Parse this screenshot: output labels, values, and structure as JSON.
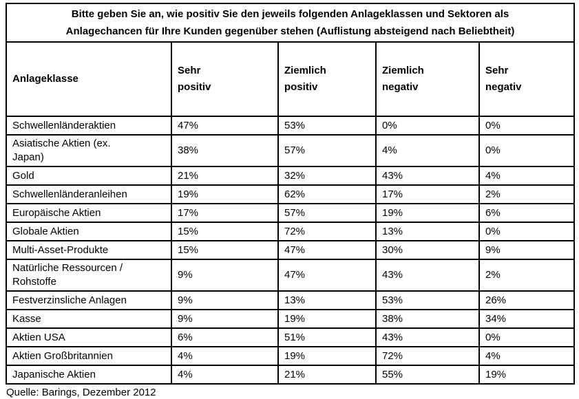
{
  "title": {
    "lines": [
      "Bitte geben Sie an, wie positiv Sie den jeweils folgenden Anlageklassen und Sektoren als",
      "Anlagechancen für Ihre Kunden gegenüber stehen (Auflistung absteigend nach Beliebtheit)"
    ]
  },
  "table": {
    "header": {
      "anlageklasse": "Anlageklasse",
      "columns": [
        {
          "lines": [
            "Sehr",
            "positiv"
          ]
        },
        {
          "lines": [
            "Ziemlich",
            "positiv"
          ]
        },
        {
          "lines": [
            "Ziemlich",
            "negativ"
          ]
        },
        {
          "lines": [
            "Sehr",
            "negativ"
          ]
        }
      ]
    },
    "rows": [
      {
        "name_lines": [
          "Schwellenländeraktien"
        ],
        "values": [
          "47%",
          "53%",
          "0%",
          "0%"
        ]
      },
      {
        "name_lines": [
          "Asiatische Aktien (ex.",
          "Japan)"
        ],
        "values": [
          "38%",
          "57%",
          "4%",
          "0%"
        ]
      },
      {
        "name_lines": [
          "Gold"
        ],
        "values": [
          "21%",
          "32%",
          "43%",
          "4%"
        ]
      },
      {
        "name_lines": [
          "Schwellenländeranleihen"
        ],
        "values": [
          "19%",
          "62%",
          "17%",
          "2%"
        ]
      },
      {
        "name_lines": [
          "Europäische Aktien"
        ],
        "values": [
          "17%",
          "57%",
          "19%",
          "6%"
        ]
      },
      {
        "name_lines": [
          "Globale Aktien"
        ],
        "values": [
          "15%",
          "72%",
          "13%",
          "0%"
        ]
      },
      {
        "name_lines": [
          "Multi-Asset-Produkte"
        ],
        "values": [
          "15%",
          "47%",
          "30%",
          "9%"
        ]
      },
      {
        "name_lines": [
          "Natürliche Ressourcen /",
          "Rohstoffe"
        ],
        "values": [
          "9%",
          "47%",
          "43%",
          "2%"
        ]
      },
      {
        "name_lines": [
          "Festverzinsliche Anlagen"
        ],
        "values": [
          "9%",
          "13%",
          "53%",
          "26%"
        ]
      },
      {
        "name_lines": [
          "Kasse"
        ],
        "values": [
          "9%",
          "19%",
          "38%",
          "34%"
        ]
      },
      {
        "name_lines": [
          "Aktien USA"
        ],
        "values": [
          "6%",
          "51%",
          "43%",
          "0%"
        ]
      },
      {
        "name_lines": [
          "Aktien Großbritannien"
        ],
        "values": [
          "4%",
          "19%",
          "72%",
          "4%"
        ]
      },
      {
        "name_lines": [
          "Japanische Aktien"
        ],
        "values": [
          "4%",
          "21%",
          "55%",
          "19%"
        ]
      }
    ]
  },
  "source": "Quelle: Barings, Dezember 2012",
  "colors": {
    "border": "#000000",
    "text": "#000000",
    "background": "#ffffff"
  }
}
